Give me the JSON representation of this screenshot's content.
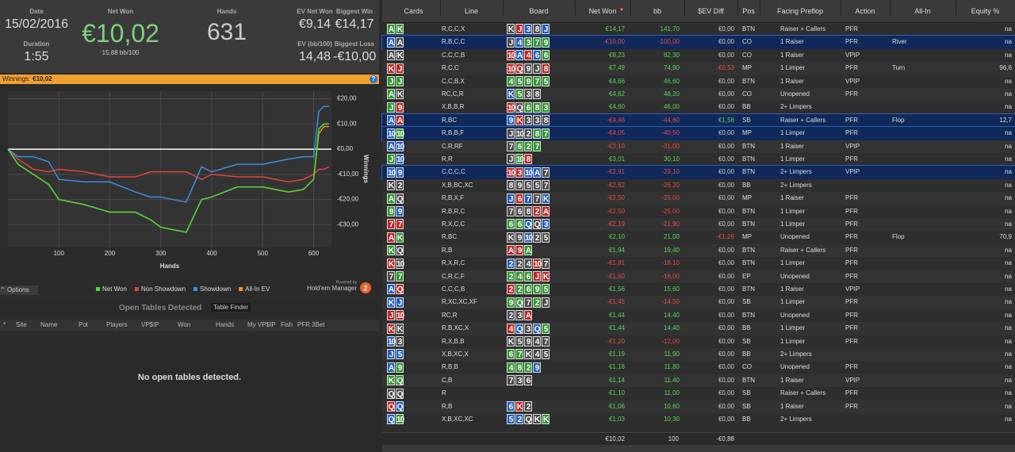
{
  "stats": {
    "date_label": "Date",
    "date": "15/02/2016",
    "net_won_label": "Net Won",
    "net_won": "€10,02",
    "bb100": "15,88 bb/100",
    "hands_label": "Hands",
    "hands": "631",
    "ev_label": "EV Net Won",
    "ev": "€9,14",
    "bw_label": "Biggest Win",
    "bw": "€14,17",
    "dur_label": "Duration",
    "dur": "1:55",
    "evbb_label": "EV (bb/100)",
    "evbb": "14,48",
    "bl_label": "Biggest Loss",
    "bl": "-€10,00"
  },
  "chart": {
    "type": "line",
    "header_label": "Winnings:",
    "header_value": "€10,02",
    "xlabel": "Hands",
    "ylabel": "Winnings",
    "x": [
      0,
      20,
      50,
      80,
      100,
      150,
      200,
      250,
      280,
      300,
      350,
      380,
      400,
      450,
      500,
      550,
      580,
      600,
      610,
      620,
      630
    ],
    "xlim": [
      0,
      635
    ],
    "xticks": [
      100,
      200,
      300,
      400,
      500,
      600
    ],
    "ylim": [
      -39,
      23
    ],
    "yticks": [
      {
        "value": 20,
        "label": "€20,00"
      },
      {
        "value": 10,
        "label": "€10,00"
      },
      {
        "value": 0,
        "label": "€0,00"
      },
      {
        "value": -10,
        "label": "-€10,00"
      },
      {
        "value": -20,
        "label": "-€20,00"
      },
      {
        "value": -30,
        "label": "-€30,00"
      }
    ],
    "series": [
      {
        "name": "Net Won",
        "color": "#4cd43c",
        "values": [
          0,
          -6,
          -10,
          -14,
          -20,
          -22,
          -25,
          -25,
          -28,
          -31,
          -33,
          -20,
          -19,
          -15,
          -15,
          -17,
          -16,
          -12,
          8,
          10,
          10
        ]
      },
      {
        "name": "Non Showdown",
        "color": "#e0443c",
        "values": [
          0,
          -4,
          -8,
          -9,
          -8,
          -9,
          -11,
          -11,
          -9,
          -9,
          -9,
          -12,
          -10,
          -11,
          -11,
          -13,
          -12,
          -10,
          -8,
          -8,
          -7
        ]
      },
      {
        "name": "Showdown",
        "color": "#3c8ee0",
        "values": [
          0,
          -3,
          -3,
          -5,
          -12,
          -13,
          -13,
          -17,
          -19,
          -19,
          -21,
          -7,
          -9,
          -6,
          -6,
          -4,
          -3,
          -3,
          15,
          17,
          17
        ]
      },
      {
        "name": "All-In EV",
        "color": "#f0902c",
        "values": [
          0,
          -6,
          -10,
          -14,
          -20,
          -22,
          -25,
          -25,
          -28,
          -31,
          -33,
          -20,
          -19,
          -15,
          -15,
          -17,
          -16,
          -12,
          6,
          9,
          9
        ]
      }
    ],
    "powered": "Powered by",
    "brand": "Hold'em Manager",
    "brand_num": "2"
  },
  "options": "Options",
  "open_tables": {
    "title": "Open Tables Detected",
    "button": "Table Finder",
    "columns": [
      "*",
      "Site",
      "Name",
      "Pot",
      "Players",
      "VP$IP",
      "Won",
      "Hands",
      "My VP$IP",
      "Fish",
      "PFR",
      "3Bet"
    ],
    "message": "No open tables detected."
  },
  "hands": {
    "columns": [
      "Cards",
      "Line",
      "Board",
      "Net Won",
      "bb",
      "$EV Diff",
      "Pos",
      "Facing Preflop",
      "Action",
      "All-In",
      "Equity %"
    ],
    "rows": [
      {
        "c": [
          "A",
          "K"
        ],
        "cs": "cc",
        "l": "R,C,C,X",
        "b": [
          "K",
          "J",
          "3",
          "8",
          "J"
        ],
        "bs": "shdsd",
        "n": "€14,17",
        "bb": "141,70",
        "ev": "€0,00",
        "p": "BTN",
        "f": "Raiser + Callers",
        "a": "PFR",
        "ai": null,
        "eq": "na"
      },
      {
        "c": [
          "A",
          "A"
        ],
        "cs": "ds",
        "l": "R,B,C,C",
        "b": [
          "J",
          "4",
          "3",
          "7",
          "9"
        ],
        "bs": "sdccc",
        "n": "-€10,00",
        "bb": "-100,00",
        "ev": "€0,00",
        "p": "CO",
        "f": "1 Raiser",
        "a": "PFR",
        "ai": "River",
        "eq": "na",
        "sel": true
      },
      {
        "c": [
          "A",
          "K"
        ],
        "cs": "ss",
        "l": "C,C,C,B",
        "b": [
          "10",
          "A",
          "4",
          "6",
          "6"
        ],
        "bs": "hdhdc",
        "n": "€8,23",
        "bb": "82,30",
        "ev": "€0,00",
        "p": "CO",
        "f": "1 Raiser",
        "a": "VPIP",
        "ai": null,
        "eq": "na"
      },
      {
        "c": [
          "K",
          "J"
        ],
        "cs": "hh",
        "l": "R,C,C",
        "b": [
          "10",
          "Q",
          "9",
          "J",
          "8"
        ],
        "bs": "hhssh",
        "n": "€7,49",
        "bb": "74,90",
        "ev": "-€0,53",
        "p": "MP",
        "f": "1 Limper",
        "a": "PFR",
        "ai": "Turn",
        "eq": "96,6"
      },
      {
        "c": [
          "J",
          "J"
        ],
        "cs": "cc",
        "l": "C,C,B,X",
        "b": [
          "4",
          "5",
          "9",
          "7",
          "5"
        ],
        "bs": "ccccc",
        "n": "€4,66",
        "bb": "46,60",
        "ev": "€0,00",
        "p": "BTN",
        "f": "1 Raiser",
        "a": "VPIP",
        "ai": null,
        "eq": "na"
      },
      {
        "c": [
          "A",
          "K"
        ],
        "cs": "cs",
        "l": "RC,C,R",
        "b": [
          "K",
          "5",
          "3",
          "8"
        ],
        "bs": "dcss",
        "n": "€4,62",
        "bb": "46,20",
        "ev": "€0,00",
        "p": "CO",
        "f": "Unopened",
        "a": "PFR",
        "ai": null,
        "eq": "na"
      },
      {
        "c": [
          "J",
          "9"
        ],
        "cs": "ch",
        "l": "X,B,B,R",
        "b": [
          "10",
          "Q",
          "6",
          "8",
          "3"
        ],
        "bs": "hsccc",
        "n": "€4,60",
        "bb": "46,00",
        "ev": "€0,00",
        "p": "BB",
        "f": "2+ Limpers",
        "a": null,
        "ai": null,
        "eq": "na"
      },
      {
        "c": [
          "A",
          "A"
        ],
        "cs": "dh",
        "l": "R,BC",
        "b": [
          "9",
          "K",
          "3",
          "3",
          "8"
        ],
        "bs": "dhsss",
        "n": "-€4,46",
        "bb": "-44,60",
        "ev": "€1,58",
        "p": "SB",
        "f": "Raiser + Callers",
        "a": "PFR",
        "ai": "Flop",
        "eq": "12,7",
        "sel": true
      },
      {
        "c": [
          "10",
          "10"
        ],
        "cs": "dc",
        "l": "R,B,B,F",
        "b": [
          "J",
          "10",
          "2",
          "8",
          "7"
        ],
        "bs": "ssscc",
        "n": "-€4,05",
        "bb": "-40,50",
        "ev": "€0,00",
        "p": "MP",
        "f": "1 Limper",
        "a": "PFR",
        "ai": null,
        "eq": "na",
        "sel": true
      },
      {
        "c": [
          "A",
          "10"
        ],
        "cs": "dd",
        "l": "C,R,RF",
        "b": [
          "7",
          "6",
          "2",
          "7"
        ],
        "bs": "sccc",
        "n": "-€3,10",
        "bb": "-31,00",
        "ev": "€0,00",
        "p": "BTN",
        "f": "1 Raiser",
        "a": "VPIP",
        "ai": null,
        "eq": "na"
      },
      {
        "c": [
          "J",
          "10"
        ],
        "cs": "cd",
        "l": "R,R",
        "b": [
          "J",
          "10",
          "8"
        ],
        "bs": "sch",
        "n": "€3,01",
        "bb": "30,10",
        "ev": "€0,00",
        "p": "BTN",
        "f": "1 Limper",
        "a": "PFR",
        "ai": null,
        "eq": "na"
      },
      {
        "c": [
          "10",
          "9"
        ],
        "cs": "dd",
        "l": "C,C,C,C",
        "b": [
          "10",
          "3",
          "10",
          "A",
          "7"
        ],
        "bs": "hhdds",
        "n": "-€2,91",
        "bb": "-29,10",
        "ev": "€0,00",
        "p": "BTN",
        "f": "2+ Limpers",
        "a": "VPIP",
        "ai": null,
        "eq": "na",
        "sel": true
      },
      {
        "c": [
          "K",
          "2"
        ],
        "cs": "ss",
        "l": "X,B,BC,XC",
        "b": [
          "8",
          "9",
          "5",
          "5",
          "7"
        ],
        "bs": "sssss",
        "n": "-€2,62",
        "bb": "-26,20",
        "ev": "€0,00",
        "p": "BB",
        "f": "2+ Limpers",
        "a": null,
        "ai": null,
        "eq": "na"
      },
      {
        "c": [
          "A",
          "Q"
        ],
        "cs": "cs",
        "l": "R,B,X,F",
        "b": [
          "J",
          "6",
          "7",
          "7",
          "K"
        ],
        "bs": "dhdsd",
        "n": "-€2,50",
        "bb": "-25,00",
        "ev": "€0,00",
        "p": "MP",
        "f": "1 Raiser",
        "a": "PFR",
        "ai": null,
        "eq": "na"
      },
      {
        "c": [
          "9",
          "9"
        ],
        "cs": "cd",
        "l": "R,B,R,C",
        "b": [
          "7",
          "6",
          "8",
          "2",
          "A"
        ],
        "bs": "ssshh",
        "n": "-€2,50",
        "bb": "-25,00",
        "ev": "€0,00",
        "p": "BTN",
        "f": "1 Limper",
        "a": "PFR",
        "ai": null,
        "eq": "na"
      },
      {
        "c": [
          "7",
          "7"
        ],
        "cs": "hh",
        "l": "R,X,C,C",
        "b": [
          "6",
          "6",
          "Q",
          "Q",
          "3"
        ],
        "bs": "ccdsd",
        "n": "-€2,19",
        "bb": "-21,90",
        "ev": "€0,00",
        "p": "BTN",
        "f": "1 Limper",
        "a": "PFR",
        "ai": null,
        "eq": "na"
      },
      {
        "c": [
          "A",
          "K"
        ],
        "cs": "hc",
        "l": "R,BC",
        "b": [
          "K",
          "9",
          "10",
          "2",
          "5"
        ],
        "bs": "ssdss",
        "n": "€2,10",
        "bb": "21,00",
        "ev": "-€1,28",
        "p": "MP",
        "f": "Unopened",
        "a": "PFR",
        "ai": "Flop",
        "eq": "70,9"
      },
      {
        "c": [
          "K",
          "Q"
        ],
        "cs": "cs",
        "l": "R,B",
        "b": [
          "A",
          "9",
          "A"
        ],
        "bs": "hhc",
        "n": "€1,94",
        "bb": "19,40",
        "ev": "€0,00",
        "p": "BTN",
        "f": "Raiser + Callers",
        "a": "PFR",
        "ai": null,
        "eq": "na"
      },
      {
        "c": [
          "K",
          "10"
        ],
        "cs": "hs",
        "l": "R,X,R,C",
        "b": [
          "2",
          "2",
          "4",
          "10",
          "7"
        ],
        "bs": "dsshs",
        "n": "-€1,81",
        "bb": "-18,10",
        "ev": "€0,00",
        "p": "BTN",
        "f": "1 Limper",
        "a": "PFR",
        "ai": null,
        "eq": "na"
      },
      {
        "c": [
          "7",
          "7"
        ],
        "cs": "sc",
        "l": "C,R,C,F",
        "b": [
          "2",
          "4",
          "6",
          "J",
          "K"
        ],
        "bs": "ccchh",
        "n": "-€1,60",
        "bb": "-16,00",
        "ev": "€0,00",
        "p": "EP",
        "f": "Unopened",
        "a": "PFR",
        "ai": null,
        "eq": "na"
      },
      {
        "c": [
          "A",
          "Q"
        ],
        "cs": "dh",
        "l": "C,C,C,B",
        "b": [
          "2",
          "2",
          "6",
          "9",
          "5"
        ],
        "bs": "hcccc",
        "n": "€1,56",
        "bb": "15,60",
        "ev": "€0,00",
        "p": "BTN",
        "f": "1 Raiser",
        "a": "VPIP",
        "ai": null,
        "eq": "na"
      },
      {
        "c": [
          "K",
          "J"
        ],
        "cs": "dd",
        "l": "R,XC,XC,XF",
        "b": [
          "9",
          "Q",
          "7",
          "2",
          "J"
        ],
        "bs": "ccscs",
        "n": "-€1,45",
        "bb": "-14,50",
        "ev": "€0,00",
        "p": "SB",
        "f": "1 Limper",
        "a": "PFR",
        "ai": null,
        "eq": "na"
      },
      {
        "c": [
          "J",
          "10"
        ],
        "cs": "hh",
        "l": "RC,R",
        "b": [
          "2",
          "3",
          "A"
        ],
        "bs": "ssh",
        "n": "€1,44",
        "bb": "14,40",
        "ev": "€0,00",
        "p": "BTN",
        "f": "Unopened",
        "a": "PFR",
        "ai": null,
        "eq": "na"
      },
      {
        "c": [
          "K",
          "K"
        ],
        "cs": "hs",
        "l": "R,B,XC,X",
        "b": [
          "4",
          "Q",
          "3",
          "Q",
          "5"
        ],
        "bs": "hdsdc",
        "n": "€1,44",
        "bb": "14,40",
        "ev": "€0,00",
        "p": "BB",
        "f": "1 Limper",
        "a": "PFR",
        "ai": null,
        "eq": "na"
      },
      {
        "c": [
          "10",
          "3"
        ],
        "cs": "ds",
        "l": "R,X,B,B",
        "b": [
          "K",
          "5",
          "9",
          "4",
          "7"
        ],
        "bs": "sssss",
        "n": "-€1,20",
        "bb": "-12,00",
        "ev": "€0,00",
        "p": "SB",
        "f": "1 Limper",
        "a": "PFR",
        "ai": null,
        "eq": "na"
      },
      {
        "c": [
          "J",
          "5"
        ],
        "cs": "dd",
        "l": "X,B,XC,X",
        "b": [
          "6",
          "7",
          "K",
          "4",
          "5"
        ],
        "bs": "ccsss",
        "n": "€1,19",
        "bb": "11,90",
        "ev": "€0,00",
        "p": "BB",
        "f": "2+ Limpers",
        "a": null,
        "ai": null,
        "eq": "na"
      },
      {
        "c": [
          "A",
          "9"
        ],
        "cs": "dc",
        "l": "R,B,B",
        "b": [
          "4",
          "8",
          "2",
          "9"
        ],
        "bs": "cccd",
        "n": "€1,18",
        "bb": "11,80",
        "ev": "€0,00",
        "p": "CO",
        "f": "Unopened",
        "a": "PFR",
        "ai": null,
        "eq": "na"
      },
      {
        "c": [
          "K",
          "Q"
        ],
        "cs": "cc",
        "l": "C,B",
        "b": [
          "7",
          "3",
          "6"
        ],
        "bs": "sss",
        "n": "€1,14",
        "bb": "11,40",
        "ev": "€0,00",
        "p": "BTN",
        "f": "1 Raiser",
        "a": "VPIP",
        "ai": null,
        "eq": "na"
      },
      {
        "c": [
          "Q",
          "Q"
        ],
        "cs": "ss",
        "l": "R",
        "n": "€1,10",
        "bb": "11,00",
        "ev": "€0,00",
        "p": "SB",
        "f": "Raiser + Callers",
        "a": "PFR",
        "ai": null,
        "eq": "na"
      },
      {
        "c": [
          "Q",
          "Q"
        ],
        "cs": "hd",
        "l": "R,B",
        "b": [
          "6",
          "K",
          "2"
        ],
        "bs": "dhs",
        "n": "€1,06",
        "bb": "10,60",
        "ev": "€0,00",
        "p": "SB",
        "f": "1 Raiser",
        "a": "PFR",
        "ai": null,
        "eq": "na"
      },
      {
        "c": [
          "Q",
          "10"
        ],
        "cs": "dc",
        "l": "X,B,XC,XC",
        "b": [
          "5",
          "2",
          "Q",
          "K",
          "K"
        ],
        "bs": "ddssc",
        "n": "€1,03",
        "bb": "10,30",
        "ev": "€0,00",
        "p": "BB",
        "f": "2+ Limpers",
        "a": null,
        "ai": null,
        "eq": "na"
      }
    ],
    "totals": {
      "n": "€10,02",
      "bb": "100",
      "ev": "-€0,88"
    }
  }
}
